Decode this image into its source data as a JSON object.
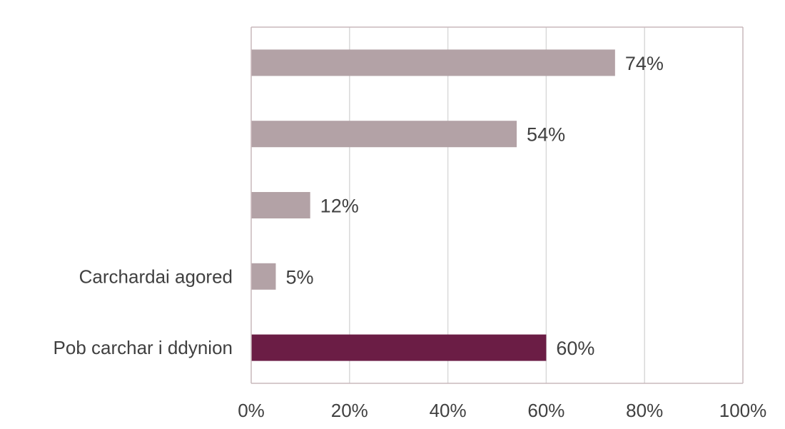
{
  "chart_data": {
    "type": "bar",
    "orientation": "horizontal",
    "title": "",
    "xlabel": "",
    "ylabel": "",
    "categories": [
      "",
      "",
      "",
      "Carchardai agored",
      "Pob carchar i ddynion"
    ],
    "values": [
      74,
      54,
      12,
      5,
      60
    ],
    "data_labels": [
      "74%",
      "54%",
      "12%",
      "5%",
      "60%"
    ],
    "bar_colors": [
      "#b3a2a6",
      "#b3a2a6",
      "#b3a2a6",
      "#b3a2a6",
      "#6b1d45"
    ],
    "xlim": [
      0,
      100
    ],
    "x_ticks": [
      0,
      20,
      40,
      60,
      80,
      100
    ],
    "x_tick_labels": [
      "0%",
      "20%",
      "40%",
      "60%",
      "80%",
      "100%"
    ],
    "grid": "vertical",
    "legend": "none"
  },
  "colors": {
    "grid": "#d9d9d9",
    "frame": "#c9b8bc",
    "text": "#404040"
  }
}
